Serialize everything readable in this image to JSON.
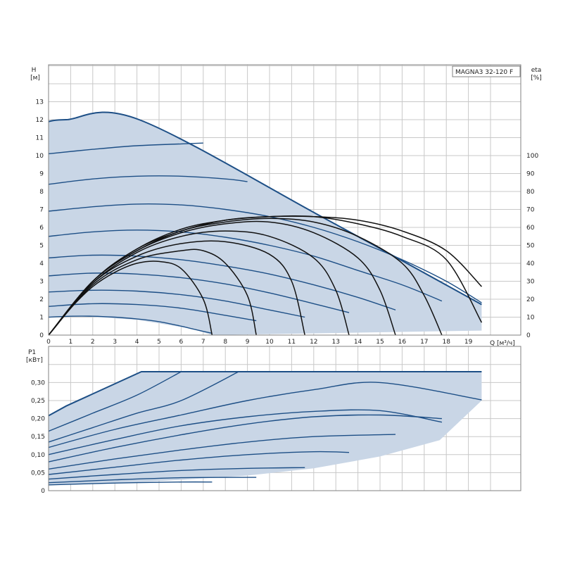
{
  "chart_data": [
    {
      "type": "line",
      "model": "MAGNA3 32-120 F",
      "ylabel": "H",
      "ylabel_unit": "[м]",
      "y2label": "eta",
      "y2label_unit": "[%]",
      "xlabel": "Q [м³/ч]",
      "xlim": [
        0,
        20.5
      ],
      "ylim": [
        0,
        14
      ],
      "y2lim": [
        0,
        140
      ],
      "x_ticks": [
        "0",
        "1",
        "2",
        "3",
        "4",
        "5",
        "6",
        "7",
        "8",
        "9",
        "10",
        "11",
        "12",
        "13",
        "14",
        "15",
        "16",
        "17",
        "18",
        "19"
      ],
      "y_ticks": [
        "0",
        "1",
        "2",
        "3",
        "4",
        "5",
        "6",
        "7",
        "8",
        "9",
        "10",
        "11",
        "12",
        "13"
      ],
      "y2_ticks": [
        "0",
        "10",
        "20",
        "30",
        "40",
        "50",
        "60",
        "70",
        "80",
        "90",
        "100"
      ],
      "grid": true,
      "max_envelope": [
        [
          0,
          11.9
        ],
        [
          0.8,
          12
        ],
        [
          4.1,
          12
        ],
        [
          12.5,
          6.5
        ],
        [
          19.6,
          1.7
        ]
      ],
      "min_envelope": [
        [
          0,
          1.0
        ],
        [
          1.5,
          1.05
        ],
        [
          4,
          0.85
        ],
        [
          6.5,
          0.35
        ],
        [
          7.4,
          0
        ],
        [
          19.6,
          0.25
        ]
      ],
      "speed_curves": [
        {
          "q": [
            0,
            1,
            2,
            3,
            4,
            5,
            6,
            6.5,
            7.4
          ],
          "h": [
            1.0,
            1.05,
            1.05,
            1.0,
            0.9,
            0.75,
            0.5,
            0.35,
            0.1
          ]
        },
        {
          "q": [
            0,
            2,
            4,
            6,
            8,
            9.4
          ],
          "h": [
            1.6,
            1.75,
            1.7,
            1.5,
            1.1,
            0.8
          ]
        },
        {
          "q": [
            0,
            2,
            4,
            6,
            8,
            10,
            11.6
          ],
          "h": [
            2.4,
            2.5,
            2.45,
            2.25,
            1.9,
            1.4,
            1.0
          ]
        },
        {
          "q": [
            0,
            2,
            4,
            6,
            8,
            10,
            12,
            13.6
          ],
          "h": [
            3.3,
            3.45,
            3.4,
            3.2,
            2.85,
            2.35,
            1.75,
            1.25
          ]
        },
        {
          "q": [
            0,
            2,
            4,
            6,
            8,
            10,
            12,
            14,
            15.7
          ],
          "h": [
            4.3,
            4.45,
            4.4,
            4.2,
            3.85,
            3.4,
            2.8,
            2.1,
            1.4
          ]
        },
        {
          "q": [
            0,
            2,
            4,
            6,
            8,
            10,
            12,
            14,
            16,
            17.8
          ],
          "h": [
            5.5,
            5.75,
            5.85,
            5.75,
            5.45,
            5.0,
            4.4,
            3.6,
            2.8,
            1.9
          ]
        },
        {
          "q": [
            0,
            2,
            4,
            6,
            8,
            10,
            12,
            14,
            16,
            18,
            19.6
          ],
          "h": [
            6.9,
            7.15,
            7.3,
            7.25,
            7.0,
            6.6,
            6.0,
            5.2,
            4.2,
            3.0,
            1.8
          ]
        },
        {
          "q": [
            0,
            2,
            4,
            6,
            8,
            9.0
          ],
          "h": [
            8.4,
            8.7,
            8.85,
            8.85,
            8.7,
            8.55
          ]
        },
        {
          "q": [
            0,
            2,
            4,
            6,
            7.0
          ],
          "h": [
            10.1,
            10.35,
            10.55,
            10.65,
            10.7
          ]
        }
      ],
      "efficiency_curves": [
        {
          "q": [
            0,
            1,
            2,
            3,
            4,
            5,
            6,
            7,
            7.4
          ],
          "eta": [
            0,
            15,
            27,
            35,
            40,
            41,
            37,
            20,
            0
          ]
        },
        {
          "q": [
            0,
            2,
            4,
            6,
            7,
            8,
            9,
            9.4
          ],
          "eta": [
            0,
            28,
            42,
            47,
            47,
            40,
            22,
            0
          ]
        },
        {
          "q": [
            0,
            2,
            4,
            6,
            8,
            10,
            11,
            11.6
          ],
          "eta": [
            0,
            29,
            44,
            51,
            52,
            45,
            30,
            0
          ]
        },
        {
          "q": [
            0,
            2,
            4,
            6,
            8,
            10,
            12,
            13,
            13.6
          ],
          "eta": [
            0,
            29,
            46,
            55,
            58,
            55,
            43,
            25,
            0
          ]
        },
        {
          "q": [
            0,
            2,
            4,
            6,
            8,
            10,
            12,
            14,
            15,
            15.7
          ],
          "eta": [
            0,
            30,
            47,
            57,
            62,
            63,
            57,
            43,
            25,
            0
          ]
        },
        {
          "q": [
            0,
            2,
            4,
            6,
            8,
            10,
            12,
            14,
            16,
            17,
            17.8
          ],
          "eta": [
            0,
            30,
            47,
            58,
            63,
            65,
            63,
            55,
            40,
            22,
            0
          ]
        },
        {
          "q": [
            0,
            2,
            4,
            6,
            8,
            10,
            12,
            14,
            16,
            18,
            19.6
          ],
          "eta": [
            0,
            30,
            48,
            58,
            64,
            66,
            66,
            62,
            55,
            42,
            7
          ]
        },
        {
          "q": [
            0,
            2,
            4,
            6,
            8,
            10,
            12,
            14,
            16,
            18,
            19.6
          ],
          "eta": [
            0,
            30,
            48,
            59,
            64,
            66,
            66,
            64,
            58,
            47,
            27
          ]
        }
      ]
    },
    {
      "type": "line",
      "ylabel": "P1",
      "ylabel_unit": "[кВт]",
      "xlim": [
        0,
        20.5
      ],
      "ylim": [
        0,
        0.36
      ],
      "y_ticks": [
        "0",
        "0,05",
        "0,10",
        "0,15",
        "0,20",
        "0,25",
        "0,30"
      ],
      "y_values": [
        0,
        0.05,
        0.1,
        0.15,
        0.2,
        0.25,
        0.3
      ],
      "grid": true,
      "max_envelope": [
        [
          0,
          0.208
        ],
        [
          0.8,
          0.235
        ],
        [
          4.2,
          0.33
        ],
        [
          19.6,
          0.33
        ]
      ],
      "min_envelope": [
        [
          0,
          0.016
        ],
        [
          3,
          0.02
        ],
        [
          6,
          0.03
        ],
        [
          9,
          0.042
        ],
        [
          12,
          0.062
        ],
        [
          15,
          0.095
        ],
        [
          17.7,
          0.14
        ],
        [
          19.6,
          0.25
        ]
      ],
      "power_curves": [
        {
          "q": [
            0,
            3,
            6,
            7.4
          ],
          "p": [
            0.016,
            0.021,
            0.024,
            0.024
          ]
        },
        {
          "q": [
            0,
            3,
            6,
            9.4
          ],
          "p": [
            0.022,
            0.03,
            0.036,
            0.037
          ]
        },
        {
          "q": [
            0,
            3,
            6,
            9,
            11.6
          ],
          "p": [
            0.032,
            0.045,
            0.056,
            0.062,
            0.064
          ]
        },
        {
          "q": [
            0,
            3,
            6,
            9,
            12,
            13.6
          ],
          "p": [
            0.045,
            0.065,
            0.085,
            0.1,
            0.108,
            0.106
          ]
        },
        {
          "q": [
            0,
            3,
            6,
            9,
            12,
            15.7
          ],
          "p": [
            0.06,
            0.088,
            0.113,
            0.135,
            0.15,
            0.156
          ]
        },
        {
          "q": [
            0,
            3,
            6,
            9,
            12,
            15,
            17.8
          ],
          "p": [
            0.08,
            0.12,
            0.155,
            0.185,
            0.205,
            0.21,
            0.2
          ]
        },
        {
          "q": [
            0,
            3,
            6,
            9,
            12,
            15,
            17.8
          ],
          "p": [
            0.1,
            0.142,
            0.18,
            0.205,
            0.22,
            0.222,
            0.19
          ]
        },
        {
          "q": [
            0,
            3,
            6,
            9,
            12,
            15,
            19.6
          ],
          "p": [
            0.12,
            0.17,
            0.21,
            0.25,
            0.28,
            0.3,
            0.252
          ]
        },
        {
          "q": [
            0,
            2,
            4,
            6,
            8.6
          ],
          "p": [
            0.135,
            0.175,
            0.215,
            0.25,
            0.33
          ]
        },
        {
          "q": [
            0,
            2,
            4,
            6.0
          ],
          "p": [
            0.165,
            0.215,
            0.265,
            0.33
          ]
        }
      ]
    }
  ]
}
